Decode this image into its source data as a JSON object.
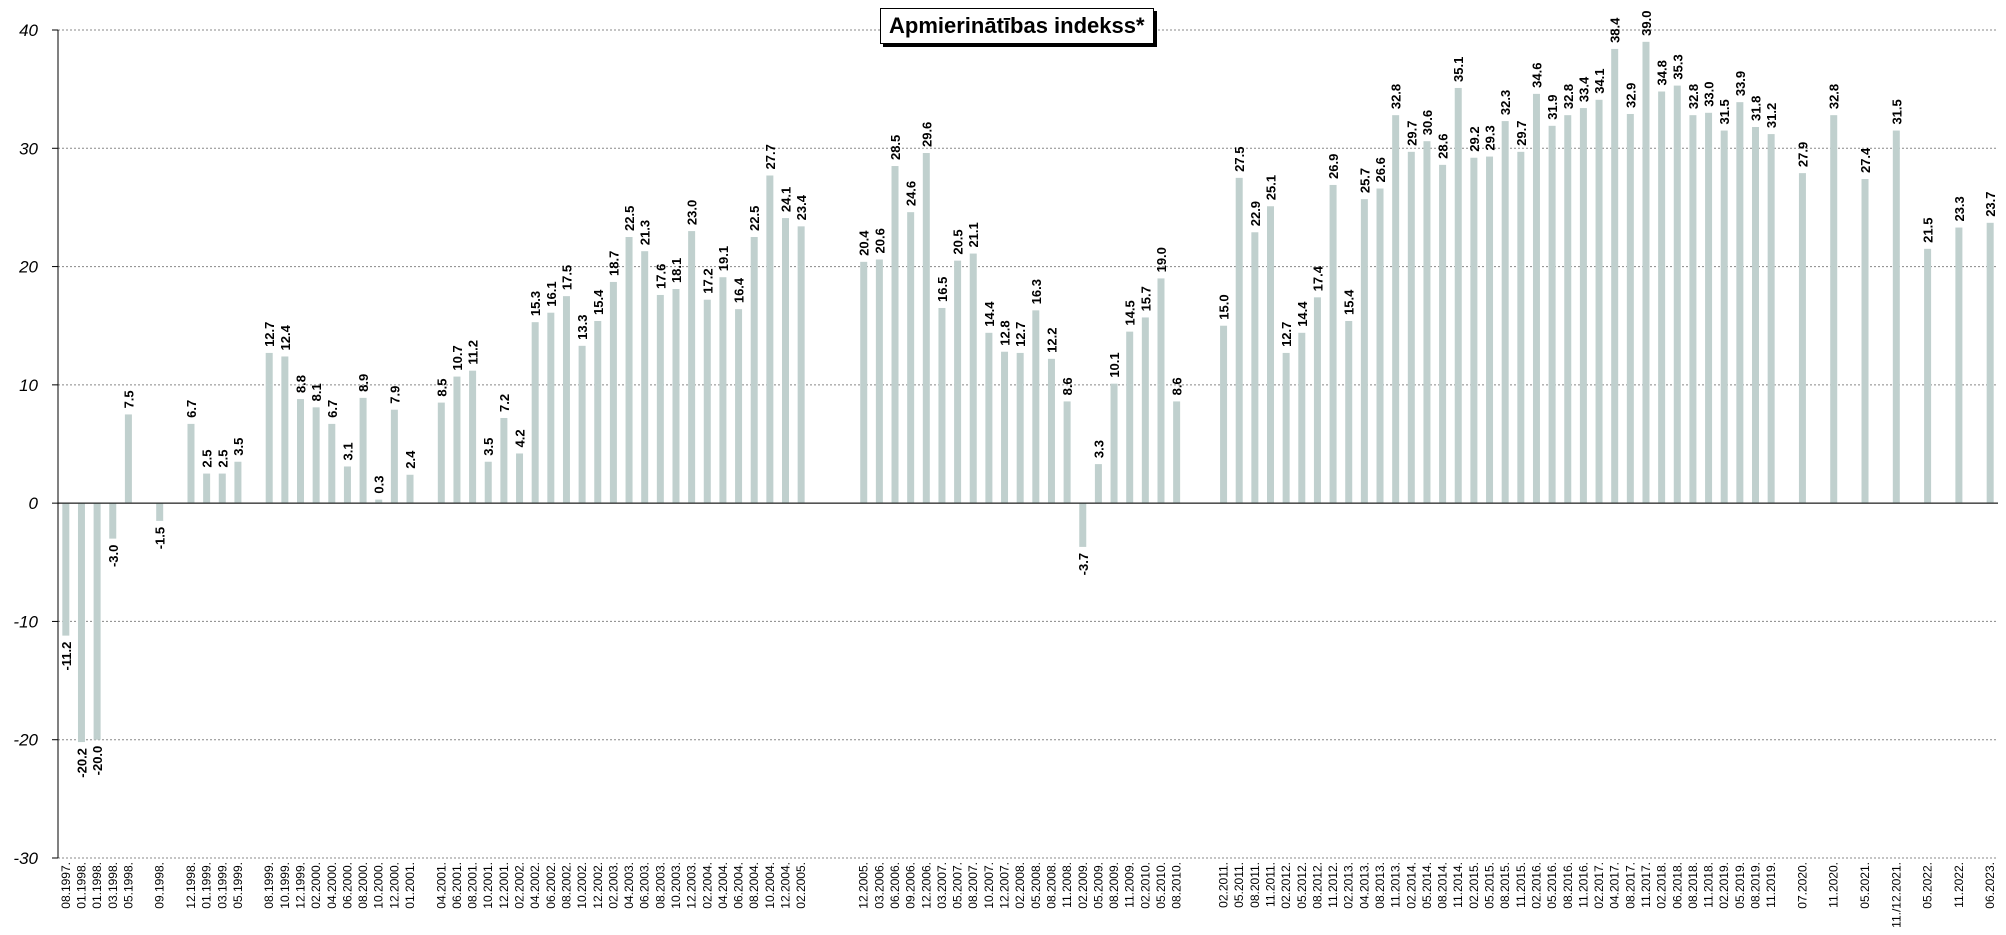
{
  "chart_data": {
    "type": "bar",
    "title": "Apmierinātības indekss*",
    "xlabel": "",
    "ylabel": "",
    "ylim": [
      -30,
      40
    ],
    "yticks": [
      -30,
      -20,
      -10,
      0,
      10,
      20,
      30,
      40
    ],
    "grid": true,
    "bar_color": "#c0d0ce",
    "grid_color": "#888888",
    "categories": [
      "08.1997.",
      "01.1998.",
      "01.1998.",
      "03.1998.",
      "05.1998.",
      "",
      "09.1998.",
      "",
      "12.1998.",
      "01.1999.",
      "03.1999.",
      "05.1999.",
      "",
      "08.1999.",
      "10.1999.",
      "12.1999.",
      "02.2000.",
      "04.2000.",
      "06.2000.",
      "08.2000.",
      "10.2000.",
      "12.2000.",
      "01.2001.",
      "",
      "04.2001.",
      "06.2001.",
      "08.2001.",
      "10.2001.",
      "12.2001.",
      "02.2002.",
      "04.2002.",
      "06.2002.",
      "08.2002.",
      "10.2002.",
      "12.2002.",
      "02.2003.",
      "04.2003.",
      "06.2003.",
      "08.2003.",
      "10.2003.",
      "12.2003.",
      "02.2004.",
      "04.2004.",
      "06.2004.",
      "08.2004.",
      "10.2004.",
      "12.2004.",
      "02.2005.",
      "",
      "",
      "",
      "12.2005.",
      "03.2006.",
      "06.2006.",
      "09.2006.",
      "12.2006.",
      "03.2007.",
      "05.2007.",
      "08.2007.",
      "10.2007.",
      "12.2007.",
      "02.2008.",
      "05.2008.",
      "08.2008.",
      "11.2008.",
      "02.2009.",
      "05.2009.",
      "08.2009.",
      "11.2009.",
      "02.2010.",
      "05.2010.",
      "08.2010.",
      "",
      "",
      "02.2011.",
      "05.2011.",
      "08.2011.",
      "11.2011.",
      "02.2012.",
      "05.2012.",
      "08.2012.",
      "11.2012.",
      "02.2013.",
      "04.2013.",
      "08.2013.",
      "11.2013.",
      "02.2014.",
      "05.2014.",
      "08.2014.",
      "11.2014.",
      "02.2015.",
      "05.2015.",
      "08.2015.",
      "11.2015.",
      "02.2016.",
      "05.2016.",
      "08.2016.",
      "11.2016.",
      "02.2017.",
      "04.2017.",
      "08.2017.",
      "11.2017.",
      "02.2018.",
      "06.2018.",
      "08.2018.",
      "11.2018.",
      "02.2019.",
      "05.2019.",
      "08.2019.",
      "11.2019.",
      "",
      "07.2020.",
      "11.2020.",
      "05.2021.",
      "11./12.2021.",
      "05.2022.",
      "11.2022.",
      "06.2023."
    ],
    "values": [
      -11.2,
      -20.2,
      -20.0,
      -3.0,
      7.5,
      null,
      -1.5,
      null,
      6.7,
      2.5,
      2.5,
      3.5,
      null,
      12.7,
      12.4,
      8.8,
      8.1,
      6.7,
      3.1,
      8.9,
      0.3,
      7.9,
      2.4,
      null,
      8.5,
      10.7,
      11.2,
      3.5,
      7.2,
      4.2,
      15.3,
      16.1,
      17.5,
      13.3,
      15.4,
      18.7,
      22.5,
      21.3,
      17.6,
      18.1,
      23.0,
      17.2,
      19.1,
      16.4,
      22.5,
      27.7,
      24.1,
      23.4,
      null,
      null,
      null,
      20.4,
      20.6,
      28.5,
      24.6,
      29.6,
      16.5,
      20.5,
      21.1,
      14.4,
      12.8,
      12.7,
      16.3,
      12.2,
      8.6,
      -3.7,
      3.3,
      10.1,
      14.5,
      15.7,
      19.0,
      8.6,
      null,
      null,
      15.0,
      27.5,
      22.9,
      25.1,
      12.7,
      14.4,
      17.4,
      26.9,
      15.4,
      25.7,
      26.6,
      32.8,
      29.7,
      30.6,
      28.6,
      35.1,
      29.2,
      29.3,
      32.3,
      29.7,
      34.6,
      31.9,
      32.8,
      33.4,
      34.1,
      38.4,
      32.9,
      39.0,
      34.8,
      35.3,
      32.8,
      33.0,
      31.5,
      33.9,
      31.8,
      31.2,
      null,
      27.9,
      32.8,
      27.4,
      31.5,
      21.5,
      23.3,
      23.7
    ],
    "positions": [
      0,
      1,
      2,
      3,
      4,
      null,
      6,
      null,
      8,
      9,
      10,
      11,
      null,
      13,
      14,
      15,
      16,
      17,
      18,
      19,
      20,
      21,
      22,
      null,
      24,
      25,
      26,
      27,
      28,
      29,
      30,
      31,
      32,
      33,
      34,
      35,
      36,
      37,
      38,
      39,
      40,
      41,
      42,
      43,
      44,
      45,
      46,
      47,
      null,
      null,
      null,
      51,
      52,
      53,
      54,
      55,
      56,
      57,
      58,
      59,
      60,
      61,
      62,
      63,
      64,
      65,
      66,
      67,
      68,
      69,
      70,
      71,
      null,
      null,
      74,
      75,
      76,
      77,
      78,
      79,
      80,
      81,
      82,
      83,
      84,
      85,
      86,
      87,
      88,
      89,
      90,
      91,
      92,
      93,
      94,
      95,
      96,
      97,
      98,
      99,
      100,
      101,
      102,
      103,
      104,
      105,
      106,
      107,
      108,
      109,
      null,
      111,
      113,
      115,
      117,
      119,
      121,
      123
    ],
    "value_labels": [
      "-11.2",
      "-20.2",
      "-20.0",
      "-3.0",
      "7.5",
      "",
      "-1.5",
      "",
      "6.7",
      "2.5",
      "2.5",
      "3.5",
      "",
      "12.7",
      "12.4",
      "8.8",
      "8.1",
      "6.7",
      "3.1",
      "8.9",
      "0.3",
      "7.9",
      "2.4",
      "",
      "8.5",
      "10.7",
      "11.2",
      "3.5",
      "7.2",
      "4.2",
      "15.3",
      "16.1",
      "17.5",
      "13.3",
      "15.4",
      "18.7",
      "22.5",
      "21.3",
      "17.6",
      "18.1",
      "23.0",
      "17.2",
      "19.1",
      "16.4",
      "22.5",
      "27.7",
      "24.1",
      "23.4",
      "",
      "",
      "",
      "20.4",
      "20.6",
      "28.5",
      "24.6",
      "29.6",
      "16.5",
      "20.5",
      "21.1",
      "14.4",
      "12.8",
      "12.7",
      "16.3",
      "12.2",
      "8.6",
      "-3.7",
      "3.3",
      "10.1",
      "14.5",
      "15.7",
      "19.0",
      "8.6",
      "",
      "",
      "15.0",
      "27.5",
      "22.9",
      "25.1",
      "12.7",
      "14.4",
      "17.4",
      "26.9",
      "15.4",
      "25.7",
      "26.6",
      "32.8",
      "29.7",
      "30.6",
      "28.6",
      "35.1",
      "29.2",
      "29.3",
      "32.3",
      "29.7",
      "34.6",
      "31.9",
      "32.8",
      "33.4",
      "34.1",
      "38.4",
      "32.9",
      "39.0",
      "34.8",
      "35.3",
      "32.8",
      "33.0",
      "31.5",
      "33.9",
      "31.8",
      "31.2",
      "",
      "27.9",
      "32.8",
      "27.4",
      "31.5",
      "21.5",
      "23.3",
      "23.7"
    ]
  }
}
